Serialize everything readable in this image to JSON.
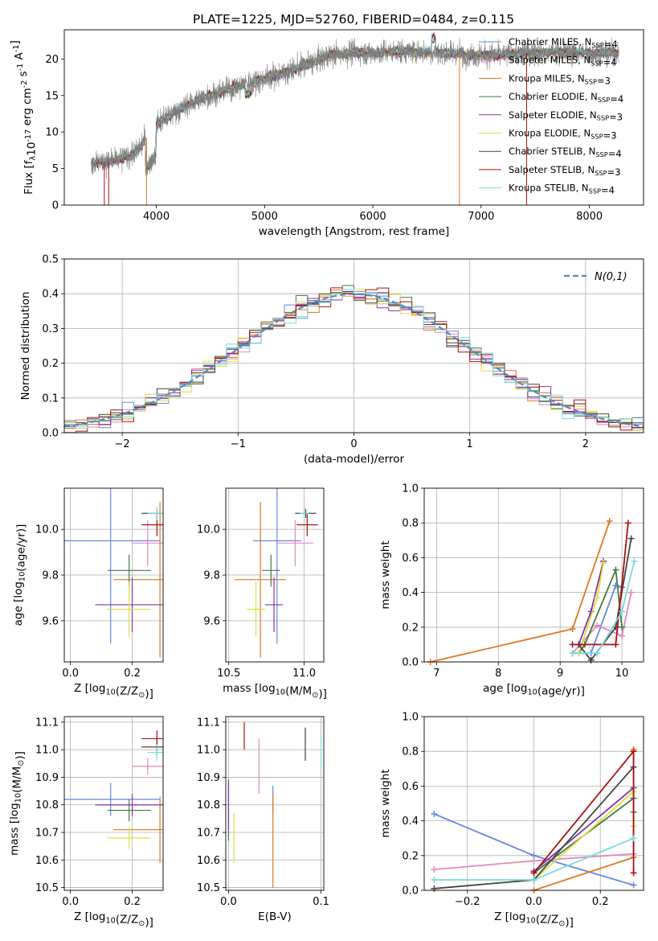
{
  "figure": {
    "title": "PLATE=1225, MJD=52760, FIBERID=0484, z=0.115"
  },
  "models": [
    {
      "label": "Chabrier MILES, N$_{SSP}$=4",
      "lib": "Chabrier MILES",
      "n": "4",
      "color": "#6688dd"
    },
    {
      "label": "Salpeter MILES, N$_{SSP}$=4",
      "lib": "Salpeter MILES",
      "n": "4",
      "color": "#e08aba"
    },
    {
      "label": "Kroupa MILES, N$_{SSP}$=3",
      "lib": "Kroupa MILES",
      "n": "3",
      "color": "#dd7722"
    },
    {
      "label": "Chabrier ELODIE, N$_{SSP}$=4",
      "lib": "Chabrier ELODIE",
      "n": "4",
      "color": "#447744"
    },
    {
      "label": "Salpeter ELODIE, N$_{SSP}$=3",
      "lib": "Salpeter ELODIE",
      "n": "3",
      "color": "#8833aa"
    },
    {
      "label": "Kroupa ELODIE, N$_{SSP}$=3",
      "lib": "Kroupa ELODIE",
      "n": "3",
      "color": "#dddd44"
    },
    {
      "label": "Chabrier STELIB, N$_{SSP}$=4",
      "lib": "Chabrier STELIB",
      "n": "4",
      "color": "#444444"
    },
    {
      "label": "Salpeter STELIB, N$_{SSP}$=3",
      "lib": "Salpeter STELIB",
      "n": "3",
      "color": "#aa1111"
    },
    {
      "label": "Kroupa STELIB, N$_{SSP}$=4",
      "lib": "Kroupa STELIB",
      "n": "4",
      "color": "#77dddd"
    }
  ],
  "chart_data": [
    {
      "id": "spectrum",
      "type": "line",
      "xlabel": "wavelength [Angstrom, rest frame]",
      "ylabel": "Flux [f$_\\lambda$10$^{-17}$ erg cm$^{-2}$ s$^{-1}$ A$^{-1}$]",
      "xlim": [
        3150,
        8500
      ],
      "ylim": [
        0,
        24
      ],
      "xticks": [
        4000,
        5000,
        6000,
        7000,
        8000
      ],
      "yticks": [
        0,
        5,
        10,
        15,
        20
      ],
      "legend": "right",
      "data_range": [
        3400,
        8270
      ],
      "continuum": {
        "x": [
          3400,
          3600,
          3800,
          4000,
          4200,
          4400,
          4600,
          4800,
          5000,
          5200,
          5400,
          5600,
          5800,
          6000,
          6200,
          6400,
          6600,
          6800,
          7000,
          7200,
          7400,
          7600,
          7800,
          8000,
          8270
        ],
        "y": [
          5.8,
          6.0,
          7.0,
          11.0,
          13.0,
          14.5,
          15.5,
          16.5,
          17.3,
          18.2,
          19.3,
          20.5,
          20.9,
          20.8,
          21.0,
          21.0,
          20.8,
          20.7,
          20.5,
          20.6,
          20.8,
          20.9,
          21.0,
          20.8,
          20.9
        ]
      }
    },
    {
      "id": "residuals",
      "type": "line",
      "xlabel": "(data-model)/error",
      "ylabel": "Normed distribution",
      "xlim": [
        -2.5,
        2.5
      ],
      "ylim": [
        0,
        0.5
      ],
      "xticks": [
        -2,
        -1,
        0,
        1,
        2
      ],
      "yticks": [
        0.0,
        0.1,
        0.2,
        0.3,
        0.4,
        0.5
      ],
      "grid": true,
      "legend": "top-right",
      "reference_label": "$\\mathcal{N}(0,1)$",
      "reference_color": "#5588cc"
    },
    {
      "id": "age_vs_Z",
      "type": "scatter",
      "xlabel": "Z [log$_{10}$(Z/Z$_\\odot$)]",
      "ylabel": "age  [log$_{10}$(age/yr)]",
      "xlim": [
        -0.02,
        0.3
      ],
      "ylim": [
        9.42,
        10.18
      ],
      "xticks": [
        0.0,
        0.2
      ],
      "yticks": [
        9.6,
        9.8,
        10.0
      ],
      "grid": true,
      "points": [
        {
          "x": 0.13,
          "y": 9.95,
          "xerr": 0.16,
          "yerr": 0.45
        },
        {
          "x": 0.25,
          "y": 9.94,
          "xerr": 0.05,
          "yerr": 0.1
        },
        {
          "x": 0.29,
          "y": 9.78,
          "xerr": 0.15,
          "yerr": 0.34
        },
        {
          "x": 0.19,
          "y": 9.82,
          "xerr": 0.07,
          "yerr": 0.07
        },
        {
          "x": 0.2,
          "y": 9.67,
          "xerr": 0.12,
          "yerr": 0.12
        },
        {
          "x": 0.19,
          "y": 9.65,
          "xerr": 0.07,
          "yerr": 0.12
        },
        {
          "x": 0.28,
          "y": 10.07,
          "xerr": 0.05,
          "yerr": 0.02
        },
        {
          "x": 0.28,
          "y": 10.02,
          "xerr": 0.05,
          "yerr": 0.05
        },
        {
          "x": 0.28,
          "y": 10.07,
          "xerr": 0.03,
          "yerr": 0.03
        }
      ]
    },
    {
      "id": "age_vs_mass",
      "type": "scatter",
      "xlabel": "mass [log$_{10}$(M/M$_\\odot$)]",
      "ylabel": "",
      "xlim": [
        10.48,
        11.13
      ],
      "ylim": [
        9.42,
        10.18
      ],
      "xticks": [
        10.5,
        11.0
      ],
      "yticks": [
        9.6,
        9.8,
        10.0
      ],
      "grid": true,
      "points": [
        {
          "x": 10.82,
          "y": 9.95,
          "xerr": 0.16,
          "yerr": 0.45
        },
        {
          "x": 10.94,
          "y": 9.94,
          "xerr": 0.12,
          "yerr": 0.1
        },
        {
          "x": 10.71,
          "y": 9.78,
          "xerr": 0.17,
          "yerr": 0.34
        },
        {
          "x": 10.78,
          "y": 9.82,
          "xerr": 0.06,
          "yerr": 0.07
        },
        {
          "x": 10.8,
          "y": 9.67,
          "xerr": 0.06,
          "yerr": 0.12
        },
        {
          "x": 10.68,
          "y": 9.65,
          "xerr": 0.06,
          "yerr": 0.12
        },
        {
          "x": 11.01,
          "y": 10.07,
          "xerr": 0.07,
          "yerr": 0.02
        },
        {
          "x": 11.02,
          "y": 10.02,
          "xerr": 0.07,
          "yerr": 0.05
        },
        {
          "x": 11.0,
          "y": 10.07,
          "xerr": 0.03,
          "yerr": 0.03
        }
      ]
    },
    {
      "id": "weight_vs_age",
      "type": "line",
      "xlabel": "age  [log$_{10}$(age/yr)]",
      "ylabel": "mass weight",
      "xlim": [
        6.8,
        10.35
      ],
      "ylim": [
        0,
        1.0
      ],
      "xticks": [
        7,
        8,
        9,
        10
      ],
      "yticks": [
        0.0,
        0.2,
        0.4,
        0.6,
        0.8,
        1.0
      ],
      "grid": true,
      "series": [
        {
          "x": [
            9.2,
            9.5,
            9.9,
            10.0
          ],
          "y": [
            0.05,
            0.05,
            0.44,
            0.43
          ]
        },
        {
          "x": [
            9.2,
            9.6,
            10.0,
            10.15
          ],
          "y": [
            0.05,
            0.21,
            0.15,
            0.4
          ]
        },
        {
          "x": [
            6.9,
            9.2,
            9.8
          ],
          "y": [
            0.0,
            0.19,
            0.81
          ]
        },
        {
          "x": [
            9.3,
            9.4,
            9.9,
            10.0
          ],
          "y": [
            0.05,
            0.1,
            0.53,
            0.2
          ]
        },
        {
          "x": [
            9.3,
            9.5,
            9.7
          ],
          "y": [
            0.1,
            0.29,
            0.58
          ]
        },
        {
          "x": [
            9.3,
            9.6,
            9.7
          ],
          "y": [
            0.05,
            0.37,
            0.57
          ]
        },
        {
          "x": [
            9.3,
            9.5,
            9.9,
            10.15
          ],
          "y": [
            0.1,
            0.01,
            0.2,
            0.71
          ]
        },
        {
          "x": [
            9.2,
            9.9,
            10.1
          ],
          "y": [
            0.1,
            0.1,
            0.8
          ]
        },
        {
          "x": [
            9.2,
            9.6,
            10.0,
            10.2
          ],
          "y": [
            0.05,
            0.05,
            0.29,
            0.58
          ]
        }
      ]
    },
    {
      "id": "mass_vs_Z",
      "type": "scatter",
      "xlabel": "Z [log$_{10}$(Z/Z$_\\odot$)]",
      "ylabel": "mass [log$_{10}$(M/M$_\\odot$)]",
      "xlim": [
        -0.02,
        0.3
      ],
      "ylim": [
        10.49,
        11.12
      ],
      "xticks": [
        0.0,
        0.2
      ],
      "yticks": [
        10.5,
        10.6,
        10.7,
        10.8,
        10.9,
        11.0,
        11.1
      ],
      "grid": true,
      "points": [
        {
          "x": 0.13,
          "y": 10.82,
          "xerr": 0.16,
          "yerr": 0.06
        },
        {
          "x": 0.25,
          "y": 10.94,
          "xerr": 0.05,
          "yerr": 0.03
        },
        {
          "x": 0.29,
          "y": 10.71,
          "xerr": 0.15,
          "yerr": 0.12
        },
        {
          "x": 0.19,
          "y": 10.78,
          "xerr": 0.07,
          "yerr": 0.04
        },
        {
          "x": 0.2,
          "y": 10.8,
          "xerr": 0.12,
          "yerr": 0.04
        },
        {
          "x": 0.19,
          "y": 10.68,
          "xerr": 0.07,
          "yerr": 0.04
        },
        {
          "x": 0.28,
          "y": 11.01,
          "xerr": 0.05,
          "yerr": 0.03
        },
        {
          "x": 0.28,
          "y": 11.04,
          "xerr": 0.05,
          "yerr": 0.03
        },
        {
          "x": 0.28,
          "y": 10.99,
          "xerr": 0.03,
          "yerr": 0.03
        }
      ]
    },
    {
      "id": "mass_vs_ebv",
      "type": "scatter",
      "xlabel": "E(B-V)",
      "ylabel": "",
      "xlim": [
        -0.003,
        0.103
      ],
      "ylim": [
        10.49,
        11.12
      ],
      "xticks": [
        0.0,
        0.1
      ],
      "yticks": [
        10.5,
        10.6,
        10.7,
        10.8,
        10.9,
        11.0,
        11.1
      ],
      "grid": true,
      "points": [
        {
          "x": 0.048,
          "y": 10.82,
          "yerr": 0.05
        },
        {
          "x": 0.033,
          "y": 10.94,
          "yerr": 0.1
        },
        {
          "x": 0.048,
          "y": 10.67,
          "yerr": 0.17
        },
        {
          "x": 0.0,
          "y": 10.78,
          "yerr": 0.11
        },
        {
          "x": 0.0,
          "y": 10.8,
          "yerr": 0.09
        },
        {
          "x": 0.006,
          "y": 10.68,
          "yerr": 0.09
        },
        {
          "x": 0.083,
          "y": 11.02,
          "yerr": 0.06
        },
        {
          "x": 0.017,
          "y": 11.05,
          "yerr": 0.05
        },
        {
          "x": 0.1,
          "y": 10.99,
          "yerr": 0.05
        }
      ]
    },
    {
      "id": "weight_vs_Z",
      "type": "line",
      "xlabel": "Z [log$_{10}$(Z/Z$_\\odot$)]",
      "ylabel": "mass weight",
      "xlim": [
        -0.33,
        0.33
      ],
      "ylim": [
        0,
        1.0
      ],
      "xticks": [
        -0.2,
        0.0,
        0.2
      ],
      "yticks": [
        0.0,
        0.2,
        0.4,
        0.6,
        0.8,
        1.0
      ],
      "grid": true,
      "series": [
        {
          "x": [
            -0.3,
            0.0,
            0.3
          ],
          "y": [
            0.44,
            0.2,
            0.03
          ]
        },
        {
          "x": [
            -0.3,
            0.0,
            0.3
          ],
          "y": [
            0.12,
            0.17,
            0.21
          ]
        },
        {
          "x": [
            0.0,
            0.3,
            0.3
          ],
          "y": [
            0.0,
            0.19,
            0.81
          ]
        },
        {
          "x": [
            0.0,
            0.3,
            0.3
          ],
          "y": [
            0.1,
            0.53,
            0.45
          ]
        },
        {
          "x": [
            0.0,
            0.3,
            0.3
          ],
          "y": [
            0.11,
            0.59,
            0.3
          ]
        },
        {
          "x": [
            0.0,
            0.3,
            0.3
          ],
          "y": [
            0.06,
            0.57,
            0.37
          ]
        },
        {
          "x": [
            -0.3,
            0.0,
            0.3
          ],
          "y": [
            0.01,
            0.06,
            0.71
          ]
        },
        {
          "x": [
            0.0,
            0.3,
            0.3
          ],
          "y": [
            0.1,
            0.8,
            0.1
          ]
        },
        {
          "x": [
            -0.3,
            0.0,
            0.3
          ],
          "y": [
            0.06,
            0.06,
            0.3
          ]
        }
      ]
    }
  ]
}
